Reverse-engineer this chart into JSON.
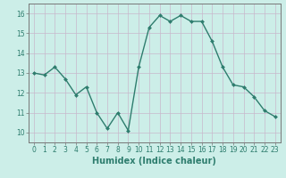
{
  "x": [
    0,
    1,
    2,
    3,
    4,
    5,
    6,
    7,
    8,
    9,
    10,
    11,
    12,
    13,
    14,
    15,
    16,
    17,
    18,
    19,
    20,
    21,
    22,
    23
  ],
  "y": [
    13.0,
    12.9,
    13.3,
    12.7,
    11.9,
    12.3,
    11.0,
    10.2,
    11.0,
    10.1,
    13.3,
    15.3,
    15.9,
    15.6,
    15.9,
    15.6,
    15.6,
    14.6,
    13.3,
    12.4,
    12.3,
    11.8,
    11.1,
    10.8
  ],
  "line_color": "#2e7d6e",
  "marker": "D",
  "marker_size": 2.0,
  "bg_color": "#cceee8",
  "grid_color": "#c8b8cc",
  "xlabel": "Humidex (Indice chaleur)",
  "ylim": [
    9.5,
    16.5
  ],
  "xlim": [
    -0.5,
    23.5
  ],
  "yticks": [
    10,
    11,
    12,
    13,
    14,
    15,
    16
  ],
  "xticks": [
    0,
    1,
    2,
    3,
    4,
    5,
    6,
    7,
    8,
    9,
    10,
    11,
    12,
    13,
    14,
    15,
    16,
    17,
    18,
    19,
    20,
    21,
    22,
    23
  ],
  "tick_fontsize": 5.5,
  "xlabel_fontsize": 7.0,
  "line_width": 1.0
}
